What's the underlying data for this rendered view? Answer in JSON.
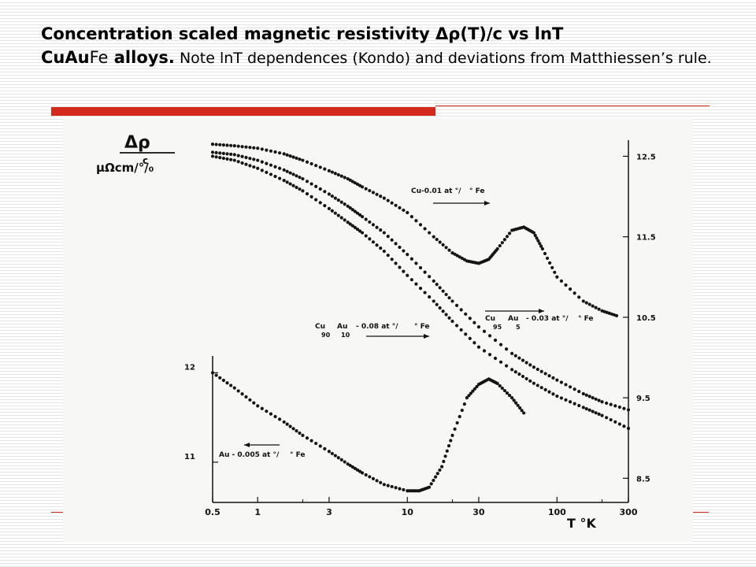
{
  "slide": {
    "title_bold_1": "Concentration scaled magnetic resistivity Δρ(T)/c vs lnT",
    "title_bold_2a": "CuAu",
    "title_plain_2": "Fe",
    "title_bold_2b": " alloys.",
    "title_note": " Note lnT dependences (Kondo) and deviations from Matthiessen’s rule."
  },
  "chart_data": {
    "type": "scatter",
    "x_scale": "log",
    "xlabel": "T °K",
    "ylabel_top": "Δρ",
    "ylabel_mid": "c",
    "ylabel_unit": "μΩcm/°/₀",
    "xlim": [
      0.5,
      300
    ],
    "x_ticks": [
      0.5,
      1,
      3,
      10,
      30,
      100,
      300
    ],
    "x_tick_labels": [
      "0.5",
      "1",
      "3",
      "10",
      "30",
      "100",
      "300"
    ],
    "right_axis": {
      "ylim": [
        8.2,
        12.7
      ],
      "ticks": [
        8.5,
        9.5,
        10.5,
        11.5,
        12.5
      ],
      "tick_labels": [
        "8.5",
        "9.5",
        "10.5",
        "11.5",
        "12.5"
      ]
    },
    "left_axis": {
      "ylim": [
        10.55,
        12.1
      ],
      "ticks": [
        11,
        12
      ],
      "tick_labels": [
        "11",
        "12"
      ]
    },
    "grid": false,
    "legend": "inline annotations with arrows",
    "series": [
      {
        "name": "Cu-0.01 at°/° Fe",
        "axis": "right",
        "label_parts": [
          "Cu-0.01 at °/",
          "° Fe"
        ],
        "arrow": "right",
        "x": [
          0.5,
          0.7,
          1,
          1.5,
          2,
          3,
          4,
          5,
          7,
          10,
          15,
          20,
          25,
          30,
          35,
          40,
          50,
          60,
          70,
          80,
          100,
          150,
          200,
          250
        ],
        "y": [
          12.65,
          12.63,
          12.6,
          12.53,
          12.45,
          12.32,
          12.22,
          12.12,
          11.98,
          11.8,
          11.5,
          11.3,
          11.2,
          11.17,
          11.22,
          11.35,
          11.58,
          11.62,
          11.55,
          11.35,
          11.0,
          10.7,
          10.58,
          10.52
        ]
      },
      {
        "name": "Cu95Au5 - 0.03 at°/° Fe",
        "axis": "right",
        "label_parts": [
          "Cu",
          "Au",
          "- 0.03 at °/",
          "° Fe",
          "95",
          "5"
        ],
        "arrow": "right",
        "x": [
          0.5,
          0.7,
          1,
          1.5,
          2,
          3,
          4,
          5,
          7,
          10,
          15,
          20,
          30,
          50,
          70,
          100,
          150,
          200,
          300
        ],
        "y": [
          12.55,
          12.52,
          12.45,
          12.33,
          12.22,
          12.03,
          11.88,
          11.75,
          11.55,
          11.28,
          10.95,
          10.7,
          10.38,
          10.05,
          9.88,
          9.72,
          9.55,
          9.45,
          9.35
        ]
      },
      {
        "name": "Cu90Au10 - 0.08 at°/° Fe",
        "axis": "right",
        "label_parts": [
          "Cu",
          "Au",
          "- 0.08 at °/",
          "° Fe",
          "90",
          "10"
        ],
        "arrow": "right",
        "x": [
          0.5,
          0.7,
          1,
          1.5,
          2,
          3,
          4,
          5,
          7,
          10,
          15,
          20,
          30,
          50,
          70,
          100,
          150,
          200,
          300
        ],
        "y": [
          12.5,
          12.45,
          12.35,
          12.2,
          12.07,
          11.85,
          11.68,
          11.55,
          11.32,
          11.02,
          10.7,
          10.45,
          10.13,
          9.85,
          9.68,
          9.52,
          9.38,
          9.28,
          9.12
        ]
      },
      {
        "name": "Au - 0.005 at°/° Fe",
        "axis": "left",
        "label_parts": [
          "Au - 0.005 at °/",
          "° Fe"
        ],
        "arrow": "left",
        "x": [
          0.5,
          0.7,
          1,
          1.5,
          2,
          3,
          4,
          5,
          7,
          10,
          12,
          14,
          17,
          20,
          25,
          30,
          35,
          40,
          50,
          60
        ],
        "y": [
          12.0,
          11.83,
          11.63,
          11.45,
          11.3,
          11.12,
          10.98,
          10.88,
          10.75,
          10.68,
          10.68,
          10.72,
          10.95,
          11.3,
          11.72,
          11.87,
          11.93,
          11.88,
          11.72,
          11.55
        ]
      }
    ]
  }
}
